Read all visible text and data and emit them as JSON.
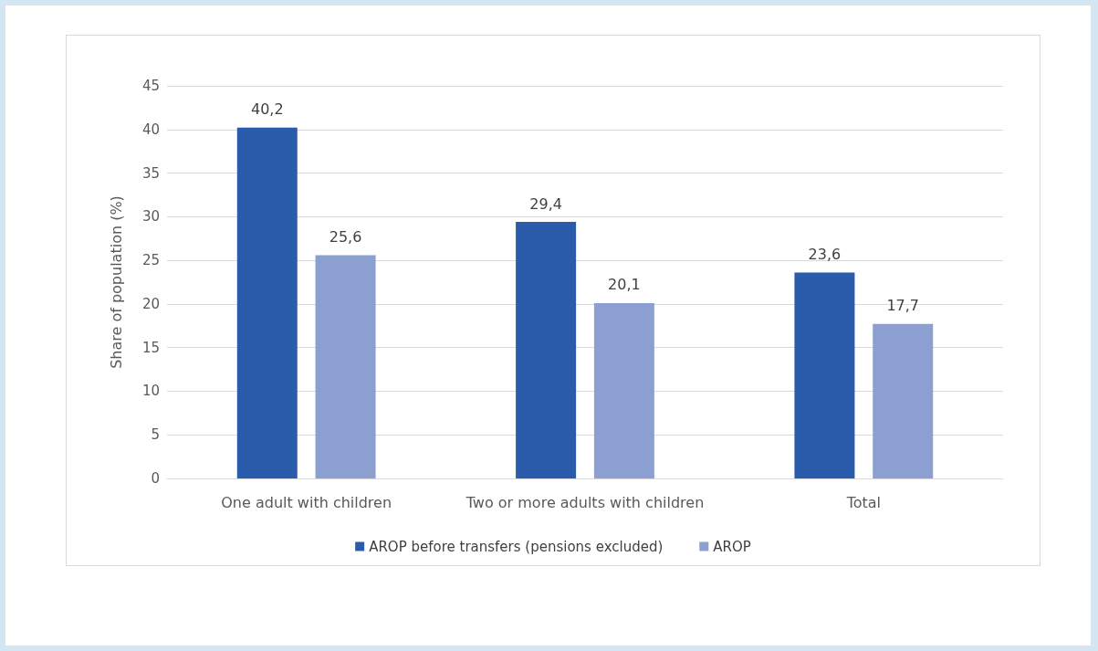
{
  "chart_data": {
    "type": "bar",
    "ylabel": "Share of population (%)",
    "categories": [
      "One adult with children",
      "Two or more adults with children",
      "Total"
    ],
    "series": [
      {
        "name": "AROP before transfers (pensions excluded)",
        "color": "#2b5cab",
        "values": [
          40.2,
          29.4,
          23.6
        ],
        "value_labels": [
          "40,2",
          "29,4",
          "23,6"
        ]
      },
      {
        "name": "AROP",
        "color": "#8c9fd1",
        "values": [
          25.6,
          20.1,
          17.7
        ],
        "value_labels": [
          "25,6",
          "20,1",
          "17,7"
        ]
      }
    ],
    "ylim": [
      0,
      45
    ],
    "yticks": [
      0,
      5,
      10,
      15,
      20,
      25,
      30,
      35,
      40,
      45
    ],
    "grid": "y",
    "legend": "bottom"
  }
}
